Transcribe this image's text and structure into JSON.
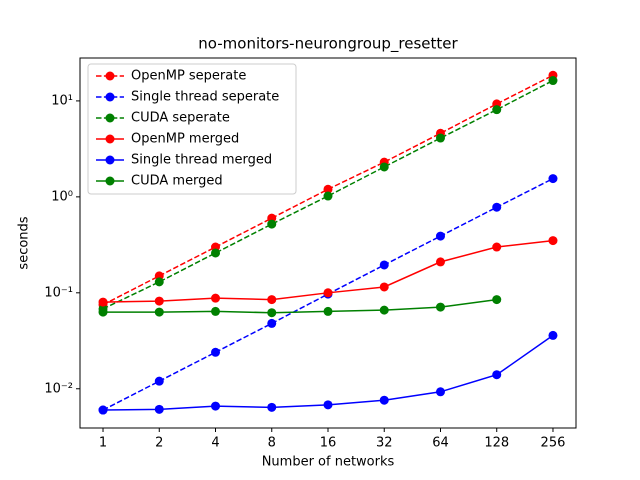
{
  "chart_data": {
    "type": "line",
    "title": "no-monitors-neurongroup_resetter",
    "xlabel": "Number of networks",
    "ylabel": "seconds",
    "x": [
      1,
      2,
      4,
      8,
      16,
      32,
      64,
      128,
      256
    ],
    "xlim": [
      0.753,
      340
    ],
    "xticks": [
      1,
      2,
      4,
      8,
      16,
      32,
      64,
      128,
      256
    ],
    "xscale": "log2",
    "ylim": [
      0.0039,
      28
    ],
    "yscale": "log",
    "yticks": [
      {
        "value": 0.01,
        "label": "10⁻²"
      },
      {
        "value": 0.1,
        "label": "10⁻¹"
      },
      {
        "value": 1,
        "label": "10⁰"
      },
      {
        "value": 10,
        "label": "10¹"
      }
    ],
    "legend": "upper left",
    "grid": false,
    "series": [
      {
        "name": "OpenMP seperate",
        "color": "#ff0000",
        "dash": true,
        "values": [
          0.075,
          0.15,
          0.3,
          0.6,
          1.2,
          2.3,
          4.6,
          9.3,
          18.5
        ]
      },
      {
        "name": "Single thread seperate",
        "color": "#0000ff",
        "dash": true,
        "values": [
          0.006,
          0.012,
          0.024,
          0.048,
          0.097,
          0.195,
          0.39,
          0.78,
          1.55
        ]
      },
      {
        "name": "CUDA seperate",
        "color": "#008000",
        "dash": true,
        "values": [
          0.068,
          0.13,
          0.26,
          0.52,
          1.02,
          2.05,
          4.1,
          8.1,
          16.3
        ]
      },
      {
        "name": "OpenMP merged",
        "color": "#ff0000",
        "dash": false,
        "values": [
          0.08,
          0.082,
          0.088,
          0.085,
          0.1,
          0.115,
          0.21,
          0.3,
          0.35
        ]
      },
      {
        "name": "Single thread merged",
        "color": "#0000ff",
        "dash": false,
        "values": [
          0.006,
          0.0061,
          0.0066,
          0.0064,
          0.0068,
          0.0076,
          0.0093,
          0.014,
          0.036
        ]
      },
      {
        "name": "CUDA merged",
        "color": "#008000",
        "dash": false,
        "values": [
          0.063,
          0.063,
          0.064,
          0.062,
          0.064,
          0.066,
          0.071,
          0.085,
          null
        ]
      }
    ]
  }
}
